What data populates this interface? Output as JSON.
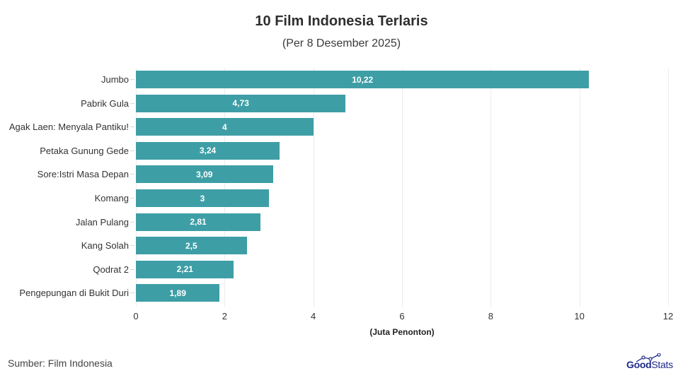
{
  "header": {
    "title": "10 Film Indonesia Terlaris",
    "subtitle": "(Per 8 Desember 2025)"
  },
  "axis": {
    "ticks": [
      "0",
      "2",
      "4",
      "6",
      "8",
      "10",
      "12"
    ],
    "xlabel": "(Juta Penonton)"
  },
  "bars": [
    {
      "label": "Jumbo",
      "value": 10.22,
      "display": "10,22"
    },
    {
      "label": "Pabrik Gula",
      "value": 4.73,
      "display": "4,73"
    },
    {
      "label": "Agak Laen: Menyala Pantiku!",
      "value": 4,
      "display": "4"
    },
    {
      "label": "Petaka Gunung Gede",
      "value": 3.24,
      "display": "3,24"
    },
    {
      "label": "Sore:Istri Masa Depan",
      "value": 3.09,
      "display": "3,09"
    },
    {
      "label": "Komang",
      "value": 3,
      "display": "3"
    },
    {
      "label": "Jalan Pulang",
      "value": 2.81,
      "display": "2,81"
    },
    {
      "label": "Kang Solah",
      "value": 2.5,
      "display": "2,5"
    },
    {
      "label": "Qodrat 2",
      "value": 2.21,
      "display": "2,21"
    },
    {
      "label": "Pengepungan di Bukit Duri",
      "value": 1.89,
      "display": "1,89"
    }
  ],
  "footer": {
    "source": "Sumber: Film Indonesia",
    "logo_good": "Good",
    "logo_stats": "Stats"
  },
  "colors": {
    "bar": "#3e9ea6",
    "logo": "#1f2a8a"
  },
  "chart_data": {
    "type": "bar",
    "orientation": "horizontal",
    "title": "10 Film Indonesia Terlaris",
    "subtitle": "(Per 8 Desember 2025)",
    "categories": [
      "Jumbo",
      "Pabrik Gula",
      "Agak Laen: Menyala Pantiku!",
      "Petaka Gunung Gede",
      "Sore:Istri Masa Depan",
      "Komang",
      "Jalan Pulang",
      "Kang Solah",
      "Qodrat 2",
      "Pengepungan di Bukit Duri"
    ],
    "values": [
      10.22,
      4.73,
      4,
      3.24,
      3.09,
      3,
      2.81,
      2.5,
      2.21,
      1.89
    ],
    "xlabel": "(Juta Penonton)",
    "ylabel": "",
    "xlim": [
      0,
      12
    ],
    "xticks": [
      0,
      2,
      4,
      6,
      8,
      10,
      12
    ],
    "grid": true,
    "data_labels": true,
    "source": "Sumber: Film Indonesia"
  }
}
